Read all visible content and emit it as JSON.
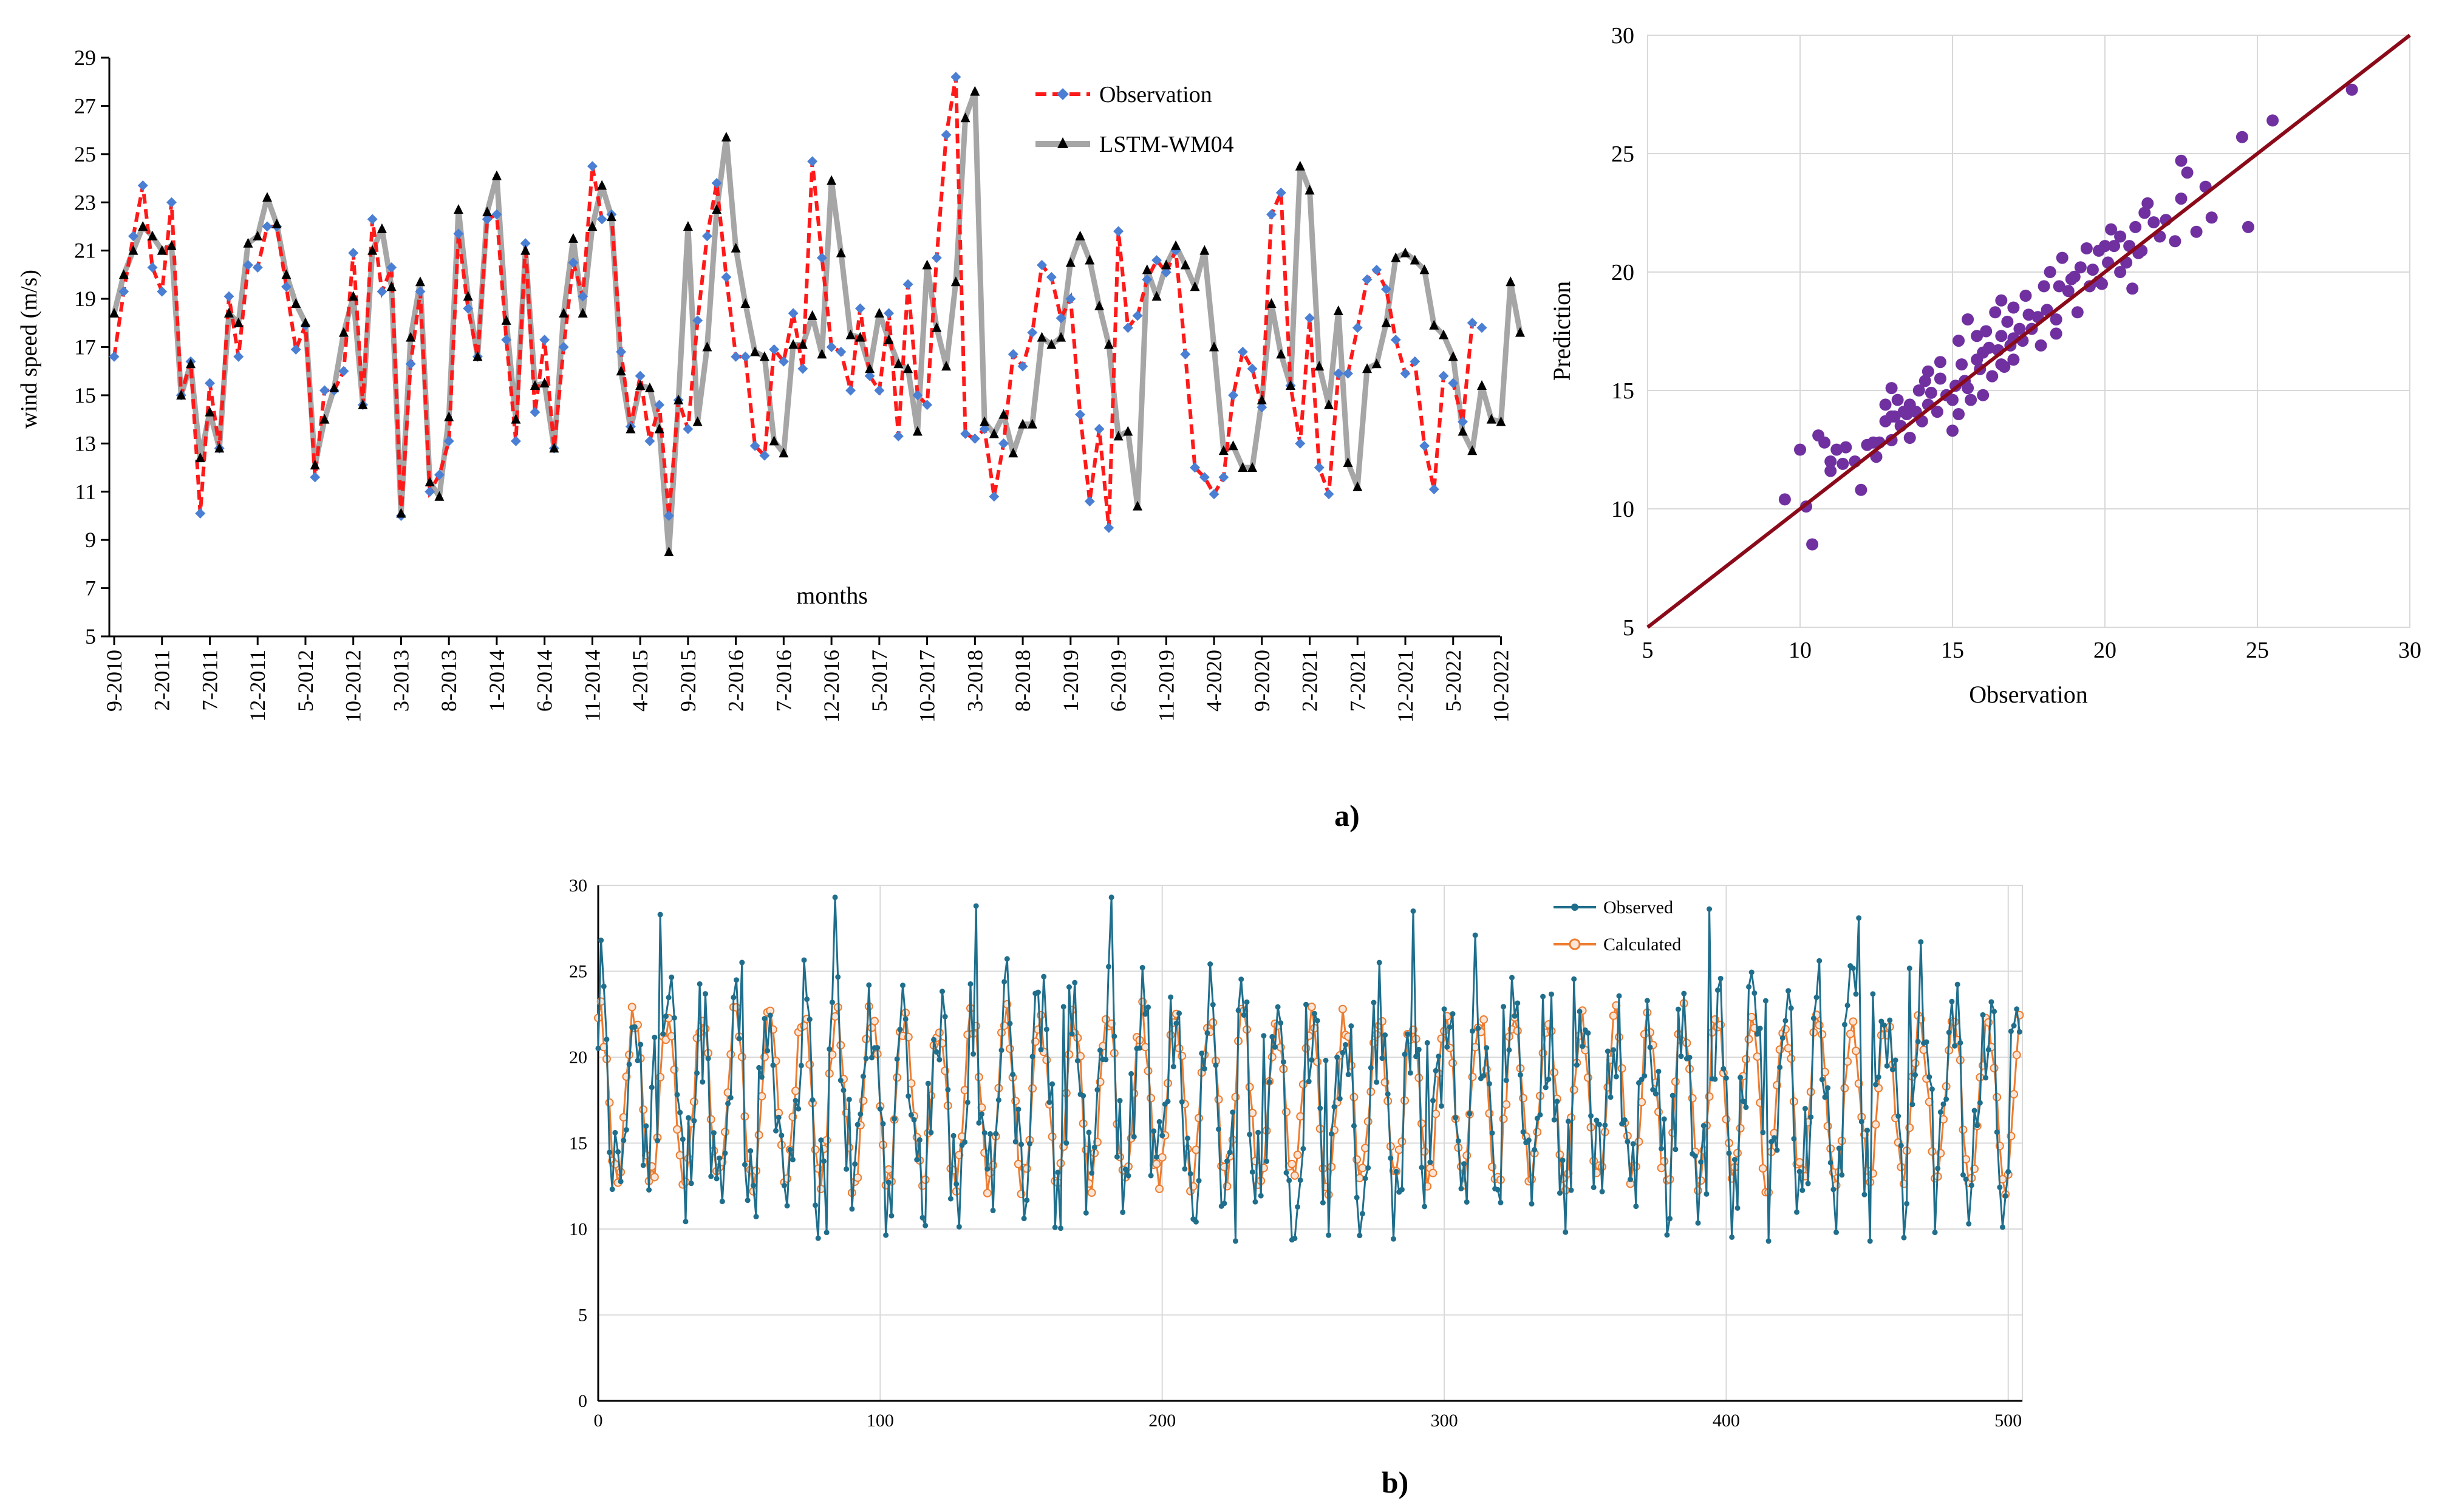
{
  "panel_labels": {
    "a": "a)",
    "b": "b)"
  },
  "chart_data": [
    {
      "id": "a1",
      "type": "line",
      "title": "",
      "xlabel": "months",
      "ylabel": "wind speed (m/s)",
      "ylim": [
        5,
        29
      ],
      "yticks": [
        5,
        7,
        9,
        11,
        13,
        15,
        17,
        19,
        21,
        23,
        25,
        27,
        29
      ],
      "xtick_labels": [
        "9-2010",
        "2-2011",
        "7-2011",
        "12-2011",
        "5-2012",
        "10-2012",
        "3-2013",
        "8-2013",
        "1-2014",
        "6-2014",
        "11-2014",
        "4-2015",
        "9-2015",
        "2-2016",
        "7-2016",
        "12-2016",
        "5-2017",
        "10-2017",
        "3-2018",
        "8-2018",
        "1-2019",
        "6-2019",
        "11-2019",
        "4-2020",
        "9-2020",
        "2-2021",
        "7-2021",
        "12-2021",
        "5-2022",
        "10-2022"
      ],
      "legend": [
        "Observation",
        "LSTM-WM04"
      ],
      "series": [
        {
          "name": "Observation",
          "color": "#ff1a1a",
          "marker_color": "#4a7fd4",
          "values": [
            16.6,
            19.3,
            21.6,
            23.7,
            20.3,
            19.3,
            23.0,
            15.0,
            16.4,
            10.1,
            15.5,
            12.8,
            19.1,
            16.6,
            20.4,
            20.3,
            22.0,
            22.0,
            19.5,
            16.9,
            17.9,
            11.6,
            15.2,
            15.2,
            16.0,
            20.9,
            14.6,
            22.3,
            19.3,
            20.3,
            10.0,
            16.3,
            19.3,
            11.0,
            11.7,
            13.1,
            21.7,
            18.6,
            16.6,
            22.3,
            22.5,
            17.3,
            13.1,
            21.3,
            14.3,
            17.3,
            12.8,
            17.0,
            20.5,
            19.1,
            24.5,
            22.3,
            22.5,
            16.8,
            13.7,
            15.8,
            13.1,
            14.6,
            10.0,
            14.8,
            13.6,
            18.1,
            21.6,
            23.8,
            19.9,
            16.6,
            16.6,
            12.9,
            12.5,
            16.9,
            16.4,
            18.4,
            16.1,
            24.7,
            20.7,
            17.0,
            16.8,
            15.2,
            18.6,
            15.8,
            15.2,
            18.4,
            13.3,
            19.6,
            15.0,
            14.6,
            20.7,
            25.8,
            28.2,
            13.4,
            13.2,
            13.6,
            10.8,
            13.0,
            16.7,
            16.2,
            17.6,
            20.4,
            19.9,
            18.2,
            19.0,
            14.2,
            10.6,
            13.6,
            9.5,
            21.8,
            17.8,
            18.3,
            19.8,
            20.6,
            20.1,
            21.0,
            16.7,
            12.0,
            11.6,
            10.9,
            11.6,
            15.0,
            16.8,
            16.1,
            14.5,
            22.5,
            23.4,
            15.4,
            13.0,
            18.2,
            12.0,
            10.9,
            15.9,
            15.9,
            17.8,
            19.8,
            20.2,
            19.4,
            17.3,
            15.9,
            16.4,
            12.9,
            11.1,
            15.8,
            15.5,
            13.9,
            18.0,
            17.8
          ]
        },
        {
          "name": "LSTM-WM04",
          "color": "#a6a6a6",
          "marker_color": "#000000",
          "values": [
            18.4,
            20.0,
            21.0,
            22.0,
            21.6,
            21.0,
            21.2,
            15.0,
            16.3,
            12.4,
            14.3,
            12.8,
            18.4,
            18.0,
            21.3,
            21.6,
            23.2,
            22.1,
            20.0,
            18.8,
            18.0,
            12.1,
            14.0,
            15.3,
            17.6,
            19.1,
            14.6,
            21.0,
            21.9,
            19.5,
            10.1,
            17.4,
            19.7,
            11.4,
            10.8,
            14.1,
            22.7,
            19.1,
            16.6,
            22.6,
            24.1,
            18.1,
            14.0,
            21.0,
            15.4,
            15.5,
            12.8,
            18.4,
            21.5,
            18.4,
            22.0,
            23.7,
            22.4,
            16.0,
            13.6,
            15.4,
            15.3,
            13.6,
            8.5,
            14.8,
            22.0,
            13.9,
            17.0,
            22.7,
            25.7,
            21.1,
            18.8,
            16.8,
            16.6,
            13.1,
            12.6,
            17.1,
            17.1,
            18.3,
            16.7,
            23.9,
            20.9,
            17.5,
            17.4,
            16.1,
            18.4,
            17.3,
            16.3,
            16.1,
            13.5,
            20.4,
            17.8,
            16.2,
            19.7,
            26.5,
            27.6,
            13.9,
            13.4,
            14.2,
            12.6,
            13.8,
            13.8,
            17.4,
            17.1,
            17.4,
            20.5,
            21.6,
            20.6,
            18.7,
            17.1,
            13.3,
            13.5,
            10.4,
            20.2,
            19.1,
            20.4,
            21.2,
            20.4,
            19.5,
            21.0,
            17.0,
            12.7,
            12.9,
            12.0,
            12.0,
            14.8,
            18.8,
            16.7,
            15.4,
            24.5,
            23.5,
            16.2,
            14.6,
            18.5,
            12.2,
            11.2,
            16.1,
            16.3,
            18.0,
            20.7,
            20.9,
            20.6,
            20.2,
            17.9,
            17.5,
            16.6,
            13.5,
            12.7,
            15.4,
            14.0,
            13.9,
            19.7,
            17.6
          ]
        }
      ]
    },
    {
      "id": "a2",
      "type": "scatter",
      "xlabel": "Observation",
      "ylabel": "Prediction",
      "xlim": [
        5,
        30
      ],
      "ylim": [
        5,
        30
      ],
      "xticks": [
        5,
        10,
        15,
        20,
        25,
        30
      ],
      "yticks": [
        5,
        10,
        15,
        20,
        25,
        30
      ],
      "point_color": "#7030a0",
      "line_color": "#8b0a1a",
      "points": [
        [
          9.5,
          10.4
        ],
        [
          10.0,
          12.5
        ],
        [
          10.2,
          10.1
        ],
        [
          10.4,
          8.5
        ],
        [
          10.6,
          13.1
        ],
        [
          10.8,
          12.8
        ],
        [
          11.0,
          11.6
        ],
        [
          11.0,
          12.0
        ],
        [
          11.2,
          12.5
        ],
        [
          11.4,
          11.9
        ],
        [
          11.5,
          12.6
        ],
        [
          11.8,
          12.0
        ],
        [
          12.0,
          10.8
        ],
        [
          12.2,
          12.7
        ],
        [
          12.5,
          12.2
        ],
        [
          12.6,
          12.8
        ],
        [
          12.8,
          13.7
        ],
        [
          12.8,
          14.4
        ],
        [
          13.0,
          12.9
        ],
        [
          13.0,
          13.9
        ],
        [
          13.0,
          15.1
        ],
        [
          13.1,
          13.9
        ],
        [
          13.2,
          14.6
        ],
        [
          13.3,
          13.5
        ],
        [
          13.5,
          14.0
        ],
        [
          13.6,
          14.4
        ],
        [
          13.6,
          13.0
        ],
        [
          13.8,
          14.1
        ],
        [
          13.9,
          15.0
        ],
        [
          14.0,
          13.7
        ],
        [
          14.1,
          15.4
        ],
        [
          14.2,
          14.4
        ],
        [
          14.3,
          14.9
        ],
        [
          14.5,
          14.1
        ],
        [
          14.6,
          15.5
        ],
        [
          14.6,
          16.2
        ],
        [
          14.8,
          14.8
        ],
        [
          15.0,
          13.3
        ],
        [
          15.0,
          14.6
        ],
        [
          15.1,
          15.2
        ],
        [
          15.2,
          17.1
        ],
        [
          15.2,
          14.0
        ],
        [
          15.3,
          16.1
        ],
        [
          15.4,
          15.4
        ],
        [
          15.5,
          18.0
        ],
        [
          15.6,
          14.6
        ],
        [
          15.8,
          16.3
        ],
        [
          15.8,
          17.3
        ],
        [
          15.9,
          15.9
        ],
        [
          16.0,
          14.8
        ],
        [
          16.0,
          16.6
        ],
        [
          16.1,
          17.5
        ],
        [
          16.2,
          16.8
        ],
        [
          16.3,
          15.6
        ],
        [
          16.4,
          18.3
        ],
        [
          16.5,
          16.7
        ],
        [
          16.6,
          17.3
        ],
        [
          16.6,
          18.8
        ],
        [
          16.7,
          16.0
        ],
        [
          16.8,
          17.9
        ],
        [
          16.9,
          16.9
        ],
        [
          17.0,
          16.3
        ],
        [
          17.0,
          18.5
        ],
        [
          17.2,
          17.6
        ],
        [
          17.3,
          17.1
        ],
        [
          17.4,
          19.0
        ],
        [
          17.6,
          17.6
        ],
        [
          17.8,
          18.1
        ],
        [
          17.9,
          16.9
        ],
        [
          18.0,
          19.4
        ],
        [
          18.1,
          18.4
        ],
        [
          18.2,
          20.0
        ],
        [
          18.4,
          18.0
        ],
        [
          18.4,
          17.4
        ],
        [
          18.5,
          19.4
        ],
        [
          18.6,
          20.6
        ],
        [
          18.8,
          19.2
        ],
        [
          19.0,
          19.8
        ],
        [
          19.1,
          18.3
        ],
        [
          19.2,
          20.2
        ],
        [
          19.4,
          21.0
        ],
        [
          19.5,
          19.4
        ],
        [
          19.6,
          20.1
        ],
        [
          19.8,
          20.9
        ],
        [
          19.9,
          19.5
        ],
        [
          20.0,
          21.1
        ],
        [
          20.1,
          20.4
        ],
        [
          20.2,
          21.8
        ],
        [
          20.3,
          21.1
        ],
        [
          20.5,
          20.0
        ],
        [
          20.5,
          21.5
        ],
        [
          20.7,
          20.4
        ],
        [
          20.8,
          21.1
        ],
        [
          20.9,
          19.3
        ],
        [
          21.0,
          21.9
        ],
        [
          21.2,
          20.9
        ],
        [
          21.3,
          22.5
        ],
        [
          21.4,
          22.9
        ],
        [
          21.6,
          22.1
        ],
        [
          21.8,
          21.5
        ],
        [
          22.0,
          22.2
        ],
        [
          22.3,
          21.3
        ],
        [
          22.5,
          23.1
        ],
        [
          22.5,
          24.7
        ],
        [
          22.7,
          24.2
        ],
        [
          23.0,
          21.7
        ],
        [
          23.3,
          23.6
        ],
        [
          23.5,
          22.3
        ],
        [
          24.5,
          25.7
        ],
        [
          24.7,
          21.9
        ],
        [
          25.5,
          26.4
        ],
        [
          28.1,
          27.7
        ],
        [
          17.0,
          17.2
        ],
        [
          15.5,
          15.1
        ],
        [
          14.2,
          15.8
        ],
        [
          18.9,
          19.7
        ],
        [
          12.4,
          12.8
        ],
        [
          16.6,
          16.1
        ],
        [
          19.8,
          19.6
        ],
        [
          21.1,
          20.8
        ],
        [
          13.4,
          14.1
        ],
        [
          17.5,
          18.2
        ]
      ]
    },
    {
      "id": "b",
      "type": "line",
      "xlabel": "",
      "ylabel": "",
      "xlim": [
        0,
        505
      ],
      "ylim": [
        0,
        30
      ],
      "xticks": [
        0,
        100,
        200,
        300,
        400,
        500
      ],
      "yticks": [
        0,
        5,
        10,
        15,
        20,
        25,
        30
      ],
      "legend": [
        "Observed",
        "Calculated"
      ],
      "series": [
        {
          "name": "Observed",
          "color": "#1f6e8c",
          "values": "generated-505-points"
        },
        {
          "name": "Calculated",
          "color": "#ed7d31",
          "values": "generated-505-points"
        }
      ]
    }
  ]
}
